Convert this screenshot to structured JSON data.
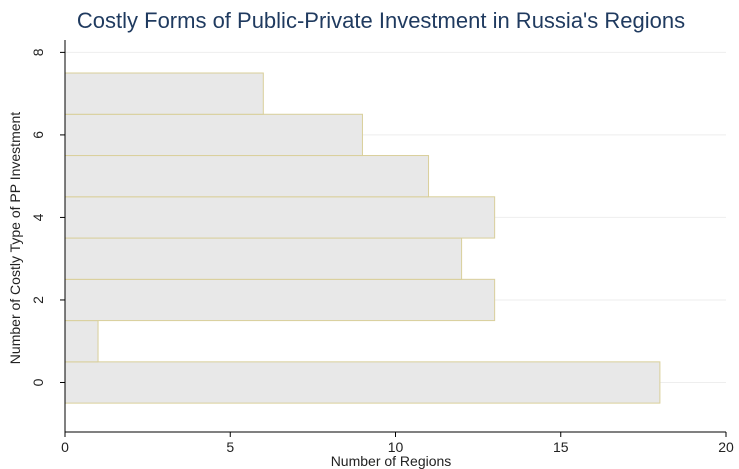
{
  "chart_data": {
    "type": "bar",
    "orientation": "horizontal",
    "title": "Costly Forms of Public-Private Investment in Russia's Regions",
    "xlabel": "Number of Regions",
    "ylabel": "Number of Costly Type of PP Investment",
    "xlim": [
      0,
      20
    ],
    "ylim": [
      -1.2,
      8.3
    ],
    "xticks": [
      0,
      5,
      10,
      15,
      20
    ],
    "yticks": [
      0,
      2,
      4,
      6,
      8
    ],
    "grid": true,
    "categories": [
      0,
      1,
      2,
      3,
      4,
      5,
      6,
      7
    ],
    "values": [
      18,
      1,
      13,
      12,
      13,
      11,
      9,
      6
    ],
    "colors": {
      "bar_fill": "#e8e8e8",
      "bar_stroke": "#d9cf9a",
      "title": "#1f3a5f",
      "grid": "#eeeeee"
    }
  }
}
